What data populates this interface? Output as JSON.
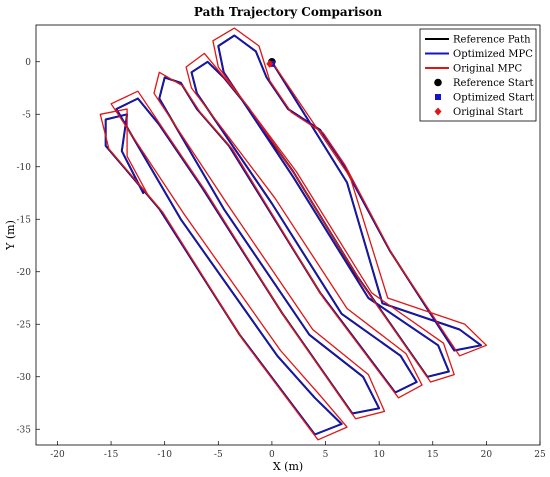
{
  "chart_data": {
    "type": "line",
    "title": "Path Trajectory Comparison",
    "xlabel": "X (m)",
    "ylabel": "Y (m)",
    "xlim": [
      -22,
      25
    ],
    "ylim": [
      -36.5,
      3.5
    ],
    "xticks": [
      -20,
      -15,
      -10,
      -5,
      0,
      5,
      10,
      15,
      20,
      25
    ],
    "yticks": [
      0,
      -5,
      -10,
      -15,
      -20,
      -25,
      -30,
      -35
    ],
    "grid": false,
    "legend_position": "top-right",
    "colors": {
      "reference": "#000000",
      "optimized": "#1515c8",
      "original": "#e01515"
    },
    "series": [
      {
        "name": "Reference Path",
        "values_xy": [
          [
            0,
            0
          ],
          [
            7,
            -11.5
          ],
          [
            10.3,
            -23
          ],
          [
            17.5,
            -25.5
          ],
          [
            19.5,
            -27
          ],
          [
            17,
            -27.5
          ],
          [
            11,
            -18
          ],
          [
            6.5,
            -9.5
          ],
          [
            4.5,
            -6.5
          ],
          [
            1.5,
            -4.5
          ],
          [
            -0.5,
            -1.5
          ],
          [
            -1.5,
            1
          ],
          [
            -3.5,
            2.5
          ],
          [
            -5,
            1.5
          ],
          [
            -4.5,
            -1
          ],
          [
            2,
            -11
          ],
          [
            9,
            -22.5
          ],
          [
            15.5,
            -27
          ],
          [
            16.5,
            -29.5
          ],
          [
            14.5,
            -30
          ],
          [
            8,
            -20.5
          ],
          [
            2,
            -10.5
          ],
          [
            -2.5,
            -4
          ],
          [
            -4.5,
            -1.5
          ],
          [
            -6,
            0
          ],
          [
            -7.5,
            -1
          ],
          [
            -7,
            -3
          ],
          [
            0,
            -13.5
          ],
          [
            6.5,
            -24
          ],
          [
            12,
            -28
          ],
          [
            13.5,
            -30.5
          ],
          [
            11.5,
            -31.5
          ],
          [
            4.5,
            -22
          ],
          [
            -4,
            -8
          ],
          [
            -7,
            -4.5
          ],
          [
            -8.5,
            -2
          ],
          [
            -10,
            -1.5
          ],
          [
            -10.5,
            -3.5
          ],
          [
            -4.5,
            -14
          ],
          [
            3.5,
            -26
          ],
          [
            8.5,
            -30
          ],
          [
            10,
            -33
          ],
          [
            7.5,
            -33.5
          ],
          [
            1,
            -24
          ],
          [
            -6.5,
            -12
          ],
          [
            -10.5,
            -6
          ],
          [
            -12.5,
            -3.5
          ],
          [
            -14.5,
            -4.5
          ],
          [
            -8.5,
            -15
          ],
          [
            0.5,
            -28
          ],
          [
            4,
            -32
          ],
          [
            6.5,
            -34.5
          ],
          [
            4,
            -35.5
          ],
          [
            -3,
            -26
          ],
          [
            -10.5,
            -14
          ],
          [
            -15.5,
            -8
          ],
          [
            -15.5,
            -5.5
          ],
          [
            -13.5,
            -5
          ],
          [
            -14,
            -8.5
          ],
          [
            -12,
            -12.5
          ]
        ]
      },
      {
        "name": "Optimized MPC",
        "values_xy": [
          [
            0,
            0
          ],
          [
            7,
            -11.5
          ],
          [
            10.3,
            -23
          ],
          [
            17.5,
            -25.5
          ],
          [
            19.5,
            -27
          ],
          [
            17,
            -27.5
          ],
          [
            11,
            -18
          ],
          [
            6.5,
            -9.5
          ],
          [
            4.5,
            -6.5
          ],
          [
            1.5,
            -4.5
          ],
          [
            -0.5,
            -1.5
          ],
          [
            -1.5,
            1
          ],
          [
            -3.5,
            2.5
          ],
          [
            -5,
            1.5
          ],
          [
            -4.5,
            -1
          ],
          [
            2,
            -11
          ],
          [
            9,
            -22.5
          ],
          [
            15.5,
            -27
          ],
          [
            16.5,
            -29.5
          ],
          [
            14.5,
            -30
          ],
          [
            8,
            -20.5
          ],
          [
            2,
            -10.5
          ],
          [
            -2.5,
            -4
          ],
          [
            -4.5,
            -1.5
          ],
          [
            -6,
            0
          ],
          [
            -7.5,
            -1
          ],
          [
            -7,
            -3
          ],
          [
            0,
            -13.5
          ],
          [
            6.5,
            -24
          ],
          [
            12,
            -28
          ],
          [
            13.5,
            -30.5
          ],
          [
            11.5,
            -31.5
          ],
          [
            4.5,
            -22
          ],
          [
            -4,
            -8
          ],
          [
            -7,
            -4.5
          ],
          [
            -8.5,
            -2
          ],
          [
            -10,
            -1.5
          ],
          [
            -10.5,
            -3.5
          ],
          [
            -4.5,
            -14
          ],
          [
            3.5,
            -26
          ],
          [
            8.5,
            -30
          ],
          [
            10,
            -33
          ],
          [
            7.5,
            -33.5
          ],
          [
            1,
            -24
          ],
          [
            -6.5,
            -12
          ],
          [
            -10.5,
            -6
          ],
          [
            -12.5,
            -3.5
          ],
          [
            -14.5,
            -4.5
          ],
          [
            -8.5,
            -15
          ],
          [
            0.5,
            -28
          ],
          [
            4,
            -32
          ],
          [
            6.5,
            -34.5
          ],
          [
            4,
            -35.5
          ],
          [
            -3,
            -26
          ],
          [
            -10.5,
            -14
          ],
          [
            -15.5,
            -8
          ],
          [
            -15.5,
            -5.5
          ],
          [
            -13.5,
            -5
          ],
          [
            -14,
            -8.5
          ],
          [
            -12,
            -12.5
          ]
        ]
      },
      {
        "name": "Original MPC",
        "values_xy": [
          [
            0,
            0
          ],
          [
            7.3,
            -11
          ],
          [
            10.8,
            -22.5
          ],
          [
            18,
            -25
          ],
          [
            20,
            -27
          ],
          [
            17.5,
            -28
          ],
          [
            11.3,
            -18.5
          ],
          [
            6.8,
            -9.8
          ],
          [
            4.8,
            -6.8
          ],
          [
            1.8,
            -4.8
          ],
          [
            -0.2,
            -1.8
          ],
          [
            -1.2,
            1.5
          ],
          [
            -3.5,
            3.2
          ],
          [
            -5.5,
            2
          ],
          [
            -5,
            -0.5
          ],
          [
            2.3,
            -10.5
          ],
          [
            9.3,
            -22
          ],
          [
            16,
            -26.8
          ],
          [
            17,
            -29.8
          ],
          [
            14.8,
            -30.5
          ],
          [
            8.3,
            -21
          ],
          [
            2.3,
            -11
          ],
          [
            -2.2,
            -4.3
          ],
          [
            -4.2,
            -1.8
          ],
          [
            -6.3,
            0.8
          ],
          [
            -8,
            -0.5
          ],
          [
            -7.5,
            -2.5
          ],
          [
            0.3,
            -13
          ],
          [
            7,
            -23.5
          ],
          [
            12.5,
            -27.8
          ],
          [
            14,
            -30.8
          ],
          [
            11.8,
            -32
          ],
          [
            4.8,
            -22.5
          ],
          [
            -3.7,
            -8.3
          ],
          [
            -6.7,
            -4.8
          ],
          [
            -8.3,
            -2.3
          ],
          [
            -10.5,
            -1
          ],
          [
            -11,
            -3
          ],
          [
            -4.2,
            -13.5
          ],
          [
            3.8,
            -25.5
          ],
          [
            9,
            -29.8
          ],
          [
            10.5,
            -33.3
          ],
          [
            7.8,
            -34
          ],
          [
            1.3,
            -24.5
          ],
          [
            -6.2,
            -12.3
          ],
          [
            -10.2,
            -6.3
          ],
          [
            -12.5,
            -2.8
          ],
          [
            -15,
            -4
          ],
          [
            -8.2,
            -14.5
          ],
          [
            0.8,
            -27.5
          ],
          [
            4.5,
            -31.8
          ],
          [
            7,
            -34.8
          ],
          [
            4.3,
            -36
          ],
          [
            -2.7,
            -26.5
          ],
          [
            -10.2,
            -14.3
          ],
          [
            -15.2,
            -8.3
          ],
          [
            -16,
            -5
          ],
          [
            -13.5,
            -4.5
          ],
          [
            -13.5,
            -9
          ],
          [
            -11.5,
            -12.8
          ]
        ]
      }
    ],
    "start_markers": [
      {
        "name": "Reference Start",
        "x": 0,
        "y": 0,
        "marker": "circle"
      },
      {
        "name": "Optimized Start",
        "x": 0,
        "y": -0.2,
        "marker": "square"
      },
      {
        "name": "Original Start",
        "x": -0.2,
        "y": -0.2,
        "marker": "diamond"
      }
    ],
    "legend": [
      {
        "label": "Reference Path",
        "kind": "line",
        "color": "#000000"
      },
      {
        "label": "Optimized MPC",
        "kind": "line",
        "color": "#1515c8"
      },
      {
        "label": "Original MPC",
        "kind": "line",
        "color": "#e01515"
      },
      {
        "label": "Reference Start",
        "kind": "circle",
        "color": "#000000"
      },
      {
        "label": "Optimized Start",
        "kind": "square",
        "color": "#1515c8"
      },
      {
        "label": "Original Start",
        "kind": "diamond",
        "color": "#e01515"
      }
    ]
  }
}
